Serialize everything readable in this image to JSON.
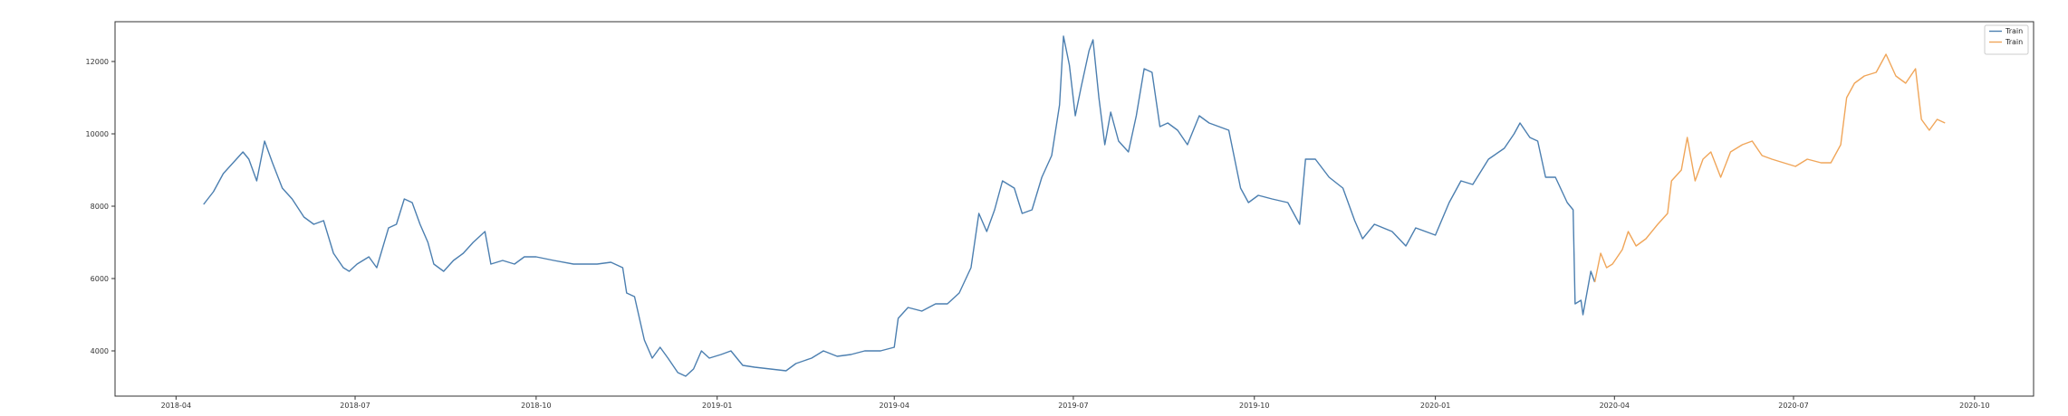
{
  "header_text": "",
  "chart_data": {
    "type": "line",
    "title": "",
    "xlabel": "",
    "ylabel": "",
    "x_axis": {
      "type": "date",
      "range": [
        "2018-03-01",
        "2020-10-31"
      ],
      "ticks": [
        {
          "date": "2018-04-01",
          "label": "2018-04"
        },
        {
          "date": "2018-07-01",
          "label": "2018-07"
        },
        {
          "date": "2018-10-01",
          "label": "2018-10"
        },
        {
          "date": "2019-01-01",
          "label": "2019-01"
        },
        {
          "date": "2019-04-01",
          "label": "2019-04"
        },
        {
          "date": "2019-07-01",
          "label": "2019-07"
        },
        {
          "date": "2019-10-01",
          "label": "2019-10"
        },
        {
          "date": "2020-01-01",
          "label": "2020-01"
        },
        {
          "date": "2020-04-01",
          "label": "2020-04"
        },
        {
          "date": "2020-07-01",
          "label": "2020-07"
        },
        {
          "date": "2020-10-01",
          "label": "2020-10"
        }
      ]
    },
    "y_axis": {
      "range": [
        2750,
        13100
      ],
      "ticks": [
        4000,
        6000,
        8000,
        10000,
        12000
      ]
    },
    "grid": false,
    "legend": {
      "placement": "top-right"
    },
    "series": [
      {
        "name": "Train",
        "color": "#4c7fb0",
        "points": [
          [
            "2018-04-15",
            8050
          ],
          [
            "2018-04-20",
            8400
          ],
          [
            "2018-04-25",
            8900
          ],
          [
            "2018-04-30",
            9200
          ],
          [
            "2018-05-05",
            9500
          ],
          [
            "2018-05-08",
            9300
          ],
          [
            "2018-05-12",
            8700
          ],
          [
            "2018-05-16",
            9800
          ],
          [
            "2018-05-20",
            9200
          ],
          [
            "2018-05-25",
            8500
          ],
          [
            "2018-05-30",
            8200
          ],
          [
            "2018-06-05",
            7700
          ],
          [
            "2018-06-10",
            7500
          ],
          [
            "2018-06-15",
            7600
          ],
          [
            "2018-06-20",
            6700
          ],
          [
            "2018-06-25",
            6300
          ],
          [
            "2018-06-28",
            6200
          ],
          [
            "2018-07-02",
            6400
          ],
          [
            "2018-07-08",
            6600
          ],
          [
            "2018-07-12",
            6300
          ],
          [
            "2018-07-18",
            7400
          ],
          [
            "2018-07-22",
            7500
          ],
          [
            "2018-07-26",
            8200
          ],
          [
            "2018-07-30",
            8100
          ],
          [
            "2018-08-03",
            7500
          ],
          [
            "2018-08-07",
            7000
          ],
          [
            "2018-08-10",
            6400
          ],
          [
            "2018-08-15",
            6200
          ],
          [
            "2018-08-20",
            6500
          ],
          [
            "2018-08-25",
            6700
          ],
          [
            "2018-08-30",
            7000
          ],
          [
            "2018-09-05",
            7300
          ],
          [
            "2018-09-08",
            6400
          ],
          [
            "2018-09-14",
            6500
          ],
          [
            "2018-09-20",
            6400
          ],
          [
            "2018-09-25",
            6600
          ],
          [
            "2018-10-01",
            6600
          ],
          [
            "2018-10-10",
            6500
          ],
          [
            "2018-10-20",
            6400
          ],
          [
            "2018-11-01",
            6400
          ],
          [
            "2018-11-08",
            6450
          ],
          [
            "2018-11-14",
            6300
          ],
          [
            "2018-11-16",
            5600
          ],
          [
            "2018-11-20",
            5500
          ],
          [
            "2018-11-25",
            4300
          ],
          [
            "2018-11-29",
            3800
          ],
          [
            "2018-12-03",
            4100
          ],
          [
            "2018-12-07",
            3800
          ],
          [
            "2018-12-12",
            3400
          ],
          [
            "2018-12-16",
            3300
          ],
          [
            "2018-12-20",
            3500
          ],
          [
            "2018-12-24",
            4000
          ],
          [
            "2018-12-28",
            3800
          ],
          [
            "2019-01-03",
            3900
          ],
          [
            "2019-01-08",
            4000
          ],
          [
            "2019-01-14",
            3600
          ],
          [
            "2019-01-20",
            3550
          ],
          [
            "2019-01-28",
            3500
          ],
          [
            "2019-02-05",
            3450
          ],
          [
            "2019-02-10",
            3650
          ],
          [
            "2019-02-18",
            3800
          ],
          [
            "2019-02-24",
            4000
          ],
          [
            "2019-03-03",
            3850
          ],
          [
            "2019-03-10",
            3900
          ],
          [
            "2019-03-17",
            4000
          ],
          [
            "2019-03-25",
            4000
          ],
          [
            "2019-04-01",
            4100
          ],
          [
            "2019-04-03",
            4900
          ],
          [
            "2019-04-08",
            5200
          ],
          [
            "2019-04-15",
            5100
          ],
          [
            "2019-04-22",
            5300
          ],
          [
            "2019-04-28",
            5300
          ],
          [
            "2019-05-04",
            5600
          ],
          [
            "2019-05-10",
            6300
          ],
          [
            "2019-05-14",
            7800
          ],
          [
            "2019-05-18",
            7300
          ],
          [
            "2019-05-22",
            7900
          ],
          [
            "2019-05-26",
            8700
          ],
          [
            "2019-06-01",
            8500
          ],
          [
            "2019-06-05",
            7800
          ],
          [
            "2019-06-10",
            7900
          ],
          [
            "2019-06-15",
            8800
          ],
          [
            "2019-06-20",
            9400
          ],
          [
            "2019-06-24",
            10800
          ],
          [
            "2019-06-26",
            12700
          ],
          [
            "2019-06-29",
            11900
          ],
          [
            "2019-07-02",
            10500
          ],
          [
            "2019-07-05",
            11300
          ],
          [
            "2019-07-09",
            12300
          ],
          [
            "2019-07-11",
            12600
          ],
          [
            "2019-07-14",
            11000
          ],
          [
            "2019-07-17",
            9700
          ],
          [
            "2019-07-20",
            10600
          ],
          [
            "2019-07-24",
            9800
          ],
          [
            "2019-07-29",
            9500
          ],
          [
            "2019-08-02",
            10500
          ],
          [
            "2019-08-06",
            11800
          ],
          [
            "2019-08-10",
            11700
          ],
          [
            "2019-08-14",
            10200
          ],
          [
            "2019-08-18",
            10300
          ],
          [
            "2019-08-23",
            10100
          ],
          [
            "2019-08-28",
            9700
          ],
          [
            "2019-09-03",
            10500
          ],
          [
            "2019-09-08",
            10300
          ],
          [
            "2019-09-13",
            10200
          ],
          [
            "2019-09-18",
            10100
          ],
          [
            "2019-09-24",
            8500
          ],
          [
            "2019-09-28",
            8100
          ],
          [
            "2019-10-03",
            8300
          ],
          [
            "2019-10-10",
            8200
          ],
          [
            "2019-10-18",
            8100
          ],
          [
            "2019-10-24",
            7500
          ],
          [
            "2019-10-27",
            9300
          ],
          [
            "2019-11-01",
            9300
          ],
          [
            "2019-11-08",
            8800
          ],
          [
            "2019-11-15",
            8500
          ],
          [
            "2019-11-21",
            7600
          ],
          [
            "2019-11-25",
            7100
          ],
          [
            "2019-12-01",
            7500
          ],
          [
            "2019-12-10",
            7300
          ],
          [
            "2019-12-17",
            6900
          ],
          [
            "2019-12-22",
            7400
          ],
          [
            "2020-01-01",
            7200
          ],
          [
            "2020-01-08",
            8100
          ],
          [
            "2020-01-14",
            8700
          ],
          [
            "2020-01-20",
            8600
          ],
          [
            "2020-01-28",
            9300
          ],
          [
            "2020-02-05",
            9600
          ],
          [
            "2020-02-10",
            10000
          ],
          [
            "2020-02-13",
            10300
          ],
          [
            "2020-02-18",
            9900
          ],
          [
            "2020-02-22",
            9800
          ],
          [
            "2020-02-26",
            8800
          ],
          [
            "2020-03-02",
            8800
          ],
          [
            "2020-03-08",
            8100
          ],
          [
            "2020-03-11",
            7900
          ],
          [
            "2020-03-12",
            5300
          ],
          [
            "2020-03-15",
            5400
          ],
          [
            "2020-03-16",
            5000
          ],
          [
            "2020-03-20",
            6200
          ],
          [
            "2020-03-22",
            5900
          ]
        ]
      },
      {
        "name": "Train",
        "color": "#f0a65a",
        "points": [
          [
            "2020-03-22",
            5900
          ],
          [
            "2020-03-25",
            6700
          ],
          [
            "2020-03-28",
            6300
          ],
          [
            "2020-03-31",
            6400
          ],
          [
            "2020-04-05",
            6800
          ],
          [
            "2020-04-08",
            7300
          ],
          [
            "2020-04-12",
            6900
          ],
          [
            "2020-04-17",
            7100
          ],
          [
            "2020-04-23",
            7500
          ],
          [
            "2020-04-28",
            7800
          ],
          [
            "2020-04-30",
            8700
          ],
          [
            "2020-05-05",
            9000
          ],
          [
            "2020-05-08",
            9900
          ],
          [
            "2020-05-12",
            8700
          ],
          [
            "2020-05-16",
            9300
          ],
          [
            "2020-05-20",
            9500
          ],
          [
            "2020-05-25",
            8800
          ],
          [
            "2020-05-30",
            9500
          ],
          [
            "2020-06-05",
            9700
          ],
          [
            "2020-06-10",
            9800
          ],
          [
            "2020-06-15",
            9400
          ],
          [
            "2020-06-20",
            9300
          ],
          [
            "2020-06-26",
            9200
          ],
          [
            "2020-07-02",
            9100
          ],
          [
            "2020-07-08",
            9300
          ],
          [
            "2020-07-15",
            9200
          ],
          [
            "2020-07-20",
            9200
          ],
          [
            "2020-07-25",
            9700
          ],
          [
            "2020-07-28",
            11000
          ],
          [
            "2020-08-01",
            11400
          ],
          [
            "2020-08-06",
            11600
          ],
          [
            "2020-08-12",
            11700
          ],
          [
            "2020-08-17",
            12200
          ],
          [
            "2020-08-22",
            11600
          ],
          [
            "2020-08-27",
            11400
          ],
          [
            "2020-09-01",
            11800
          ],
          [
            "2020-09-04",
            10400
          ],
          [
            "2020-09-08",
            10100
          ],
          [
            "2020-09-12",
            10400
          ],
          [
            "2020-09-16",
            10300
          ]
        ]
      }
    ]
  }
}
